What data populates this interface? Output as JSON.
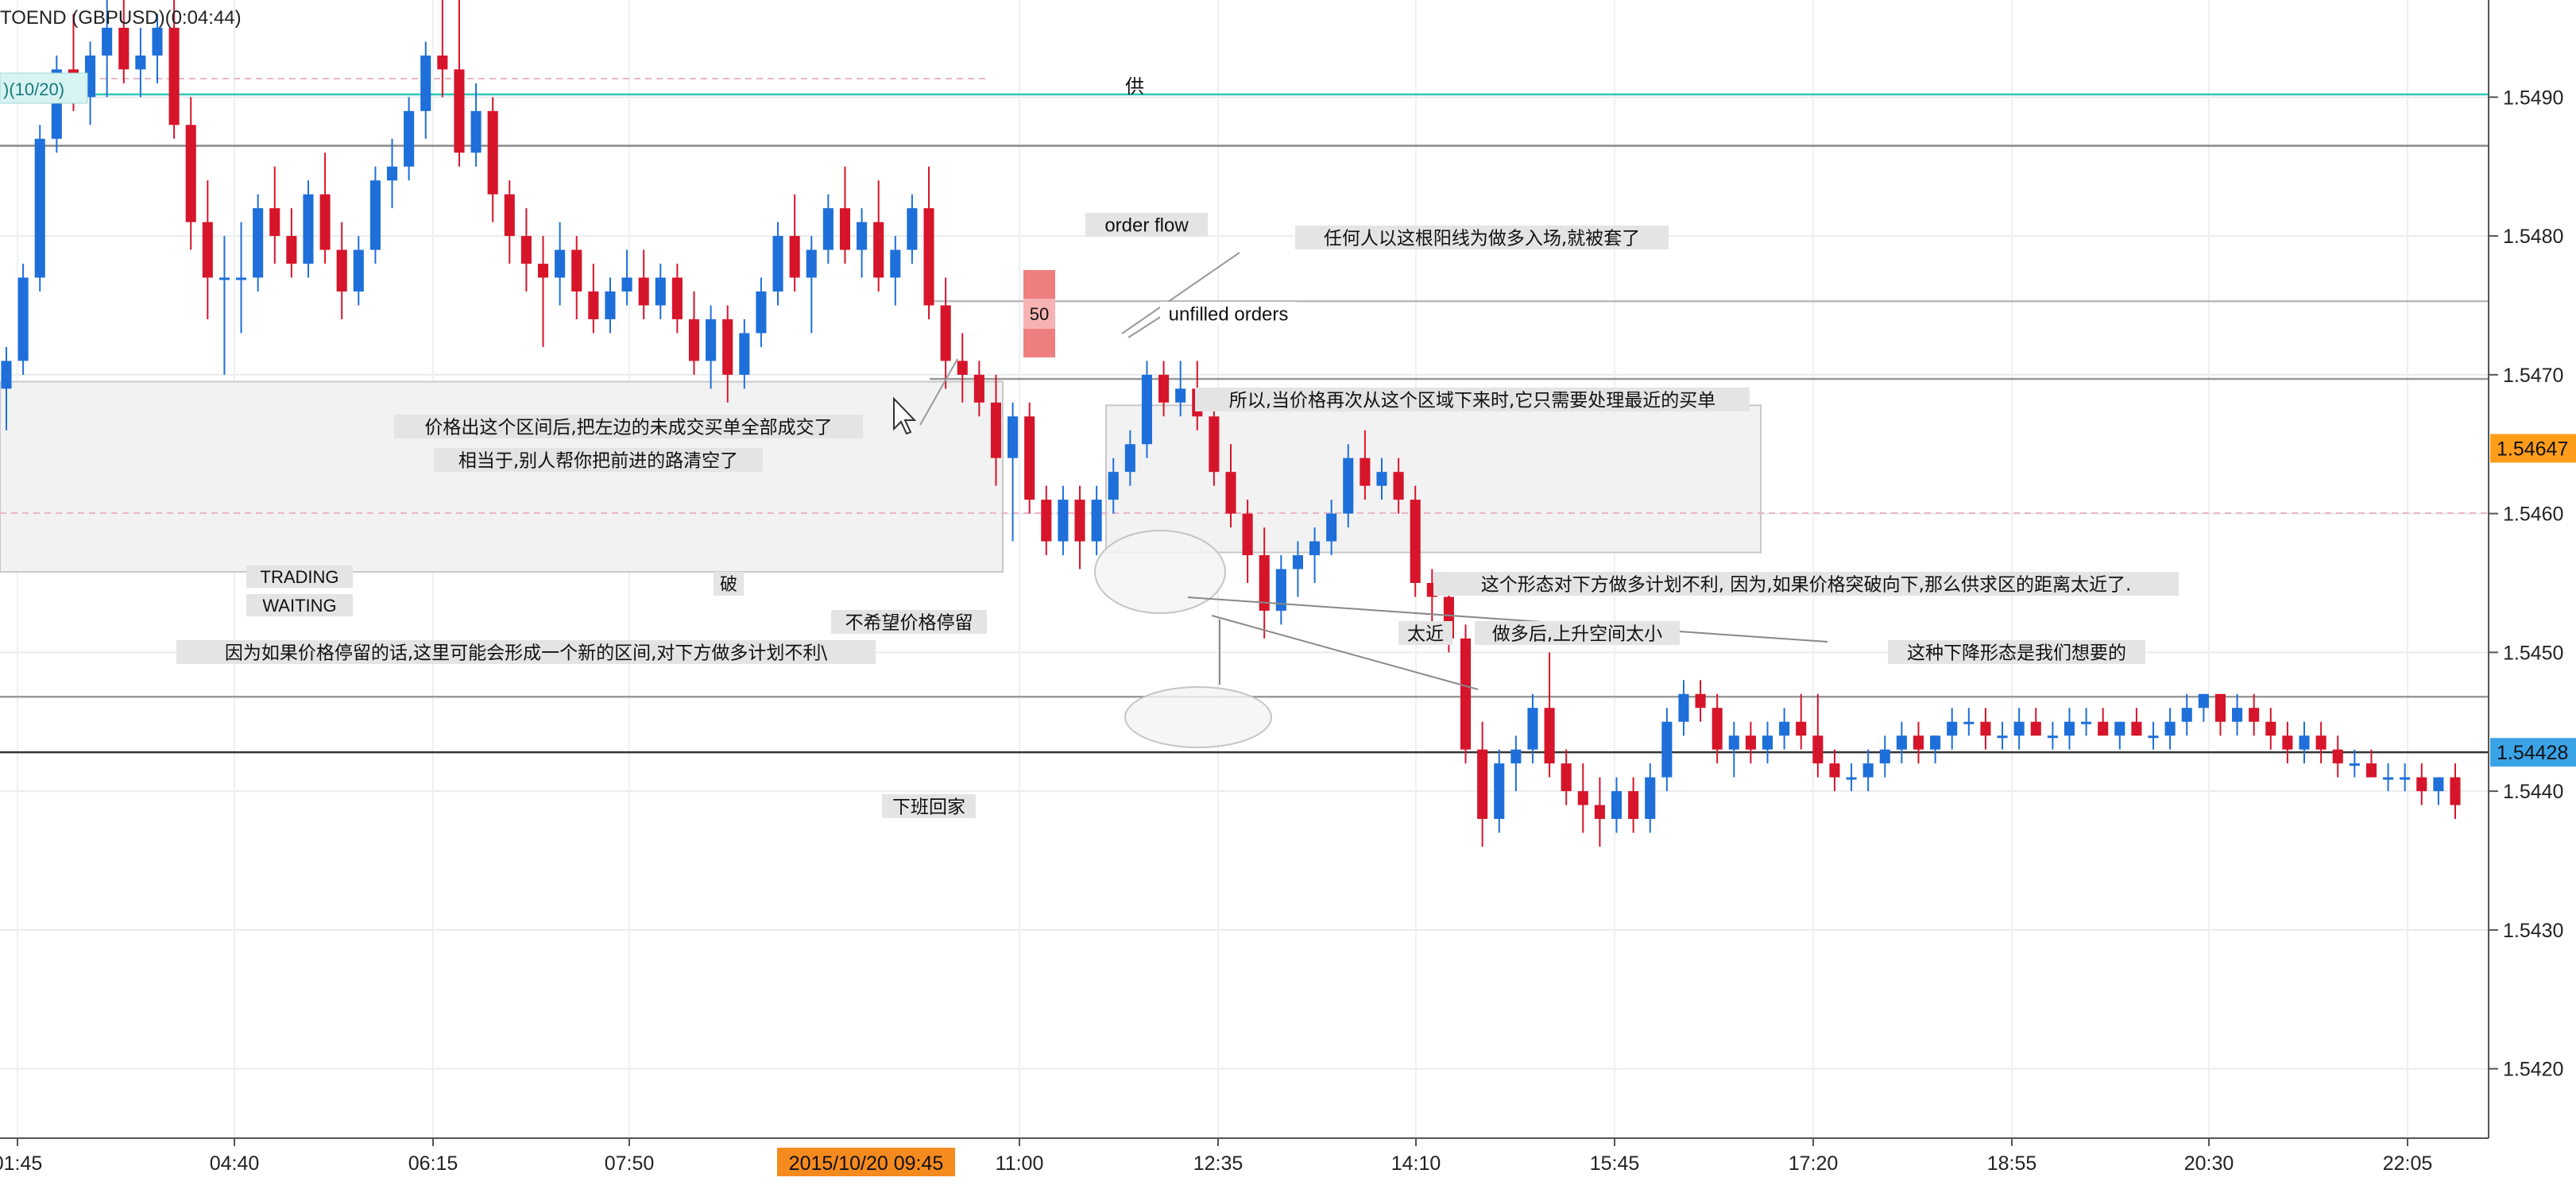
{
  "window": {
    "symbol_title": "TOEND (GBPUSD)(0:04:44)",
    "indicator_label": ")(10/20)"
  },
  "chart_data": {
    "type": "candlestick",
    "ylim": [
      1.5415,
      1.5497
    ],
    "y_ticks": [
      "1.5490",
      "1.5480",
      "1.5470",
      "1.5460",
      "1.5450",
      "1.5440",
      "1.5430",
      "1.5420"
    ],
    "y_tick_values": [
      1.549,
      1.548,
      1.547,
      1.546,
      1.545,
      1.544,
      1.543,
      1.542
    ],
    "x_ticks": [
      "01:45",
      "04:40",
      "06:15",
      "07:50",
      "11:00",
      "12:35",
      "14:10",
      "15:45",
      "17:20",
      "18:55",
      "20:30",
      "22:05"
    ],
    "x_highlight_label": "2015/10/20 09:45",
    "price_markers": [
      {
        "label": "1.54647",
        "value": 1.54647,
        "color": "#ff9d1a"
      },
      {
        "label": "1.54428",
        "value": 1.54428,
        "color": "#3aa3e8"
      }
    ],
    "levels": [
      {
        "value": 1.54902,
        "color": "#2ec8b5",
        "label": "供"
      },
      {
        "value": 1.54865,
        "color": "#888888",
        "label": ""
      },
      {
        "value": 1.54753,
        "color": "#bbbbbb",
        "label": ""
      },
      {
        "value": 1.54697,
        "color": "#999999",
        "label": ""
      },
      {
        "value": 1.54468,
        "color": "#999999",
        "label": ""
      },
      {
        "value": 1.54428,
        "color": "#333333",
        "label": ""
      }
    ],
    "zones": [
      {
        "from": 1.54695,
        "to": 1.54558,
        "color": "#f2f2f2"
      },
      {
        "from": 1.54678,
        "to": 1.54572,
        "color": "#f2f2f2"
      }
    ],
    "candles": [
      {
        "o": 1.5469,
        "h": 1.5472,
        "l": 1.5466,
        "c": 1.5471
      },
      {
        "o": 1.5471,
        "h": 1.5478,
        "l": 1.547,
        "c": 1.5477
      },
      {
        "o": 1.5477,
        "h": 1.5488,
        "l": 1.5476,
        "c": 1.5487
      },
      {
        "o": 1.5487,
        "h": 1.5493,
        "l": 1.5486,
        "c": 1.5492
      },
      {
        "o": 1.5492,
        "h": 1.5496,
        "l": 1.5489,
        "c": 1.549
      },
      {
        "o": 1.549,
        "h": 1.5494,
        "l": 1.5488,
        "c": 1.5493
      },
      {
        "o": 1.5493,
        "h": 1.5497,
        "l": 1.549,
        "c": 1.5495
      },
      {
        "o": 1.5495,
        "h": 1.5497,
        "l": 1.5491,
        "c": 1.5492
      },
      {
        "o": 1.5492,
        "h": 1.5495,
        "l": 1.549,
        "c": 1.5493
      },
      {
        "o": 1.5493,
        "h": 1.5496,
        "l": 1.5491,
        "c": 1.5495
      },
      {
        "o": 1.5495,
        "h": 1.5497,
        "l": 1.5487,
        "c": 1.5488
      },
      {
        "o": 1.5488,
        "h": 1.549,
        "l": 1.5479,
        "c": 1.5481
      },
      {
        "o": 1.5481,
        "h": 1.5484,
        "l": 1.5474,
        "c": 1.5477
      },
      {
        "o": 1.5477,
        "h": 1.548,
        "l": 1.547,
        "c": 1.5477
      },
      {
        "o": 1.5477,
        "h": 1.5481,
        "l": 1.5473,
        "c": 1.5477
      },
      {
        "o": 1.5477,
        "h": 1.5483,
        "l": 1.5476,
        "c": 1.5482
      },
      {
        "o": 1.5482,
        "h": 1.5485,
        "l": 1.5478,
        "c": 1.548
      },
      {
        "o": 1.548,
        "h": 1.5482,
        "l": 1.5477,
        "c": 1.5478
      },
      {
        "o": 1.5478,
        "h": 1.5484,
        "l": 1.5477,
        "c": 1.5483
      },
      {
        "o": 1.5483,
        "h": 1.5486,
        "l": 1.5478,
        "c": 1.5479
      },
      {
        "o": 1.5479,
        "h": 1.5481,
        "l": 1.5474,
        "c": 1.5476
      },
      {
        "o": 1.5476,
        "h": 1.548,
        "l": 1.5475,
        "c": 1.5479
      },
      {
        "o": 1.5479,
        "h": 1.5485,
        "l": 1.5478,
        "c": 1.5484
      },
      {
        "o": 1.5484,
        "h": 1.5487,
        "l": 1.5482,
        "c": 1.5485
      },
      {
        "o": 1.5485,
        "h": 1.549,
        "l": 1.5484,
        "c": 1.5489
      },
      {
        "o": 1.5489,
        "h": 1.5494,
        "l": 1.5487,
        "c": 1.5493
      },
      {
        "o": 1.5493,
        "h": 1.5497,
        "l": 1.549,
        "c": 1.5492
      },
      {
        "o": 1.5492,
        "h": 1.5497,
        "l": 1.5485,
        "c": 1.5486
      },
      {
        "o": 1.5486,
        "h": 1.5491,
        "l": 1.5485,
        "c": 1.5489
      },
      {
        "o": 1.5489,
        "h": 1.549,
        "l": 1.5481,
        "c": 1.5483
      },
      {
        "o": 1.5483,
        "h": 1.5484,
        "l": 1.5478,
        "c": 1.548
      },
      {
        "o": 1.548,
        "h": 1.5482,
        "l": 1.5476,
        "c": 1.5478
      },
      {
        "o": 1.5478,
        "h": 1.548,
        "l": 1.5472,
        "c": 1.5477
      },
      {
        "o": 1.5477,
        "h": 1.5481,
        "l": 1.5475,
        "c": 1.5479
      },
      {
        "o": 1.5479,
        "h": 1.548,
        "l": 1.5474,
        "c": 1.5476
      },
      {
        "o": 1.5476,
        "h": 1.5478,
        "l": 1.5473,
        "c": 1.5474
      },
      {
        "o": 1.5474,
        "h": 1.5477,
        "l": 1.5473,
        "c": 1.5476
      },
      {
        "o": 1.5476,
        "h": 1.5479,
        "l": 1.5475,
        "c": 1.5477
      },
      {
        "o": 1.5477,
        "h": 1.5479,
        "l": 1.5474,
        "c": 1.5475
      },
      {
        "o": 1.5475,
        "h": 1.5478,
        "l": 1.5474,
        "c": 1.5477
      },
      {
        "o": 1.5477,
        "h": 1.5478,
        "l": 1.5473,
        "c": 1.5474
      },
      {
        "o": 1.5474,
        "h": 1.5476,
        "l": 1.547,
        "c": 1.5471
      },
      {
        "o": 1.5471,
        "h": 1.5475,
        "l": 1.5469,
        "c": 1.5474
      },
      {
        "o": 1.5474,
        "h": 1.5475,
        "l": 1.5468,
        "c": 1.547
      },
      {
        "o": 1.547,
        "h": 1.5474,
        "l": 1.5469,
        "c": 1.5473
      },
      {
        "o": 1.5473,
        "h": 1.5477,
        "l": 1.5472,
        "c": 1.5476
      },
      {
        "o": 1.5476,
        "h": 1.5481,
        "l": 1.5475,
        "c": 1.548
      },
      {
        "o": 1.548,
        "h": 1.5483,
        "l": 1.5476,
        "c": 1.5477
      },
      {
        "o": 1.5477,
        "h": 1.548,
        "l": 1.5473,
        "c": 1.5479
      },
      {
        "o": 1.5479,
        "h": 1.5483,
        "l": 1.5478,
        "c": 1.5482
      },
      {
        "o": 1.5482,
        "h": 1.5485,
        "l": 1.5478,
        "c": 1.5479
      },
      {
        "o": 1.5479,
        "h": 1.5482,
        "l": 1.5477,
        "c": 1.5481
      },
      {
        "o": 1.5481,
        "h": 1.5484,
        "l": 1.5476,
        "c": 1.5477
      },
      {
        "o": 1.5477,
        "h": 1.548,
        "l": 1.5475,
        "c": 1.5479
      },
      {
        "o": 1.5479,
        "h": 1.5483,
        "l": 1.5478,
        "c": 1.5482
      },
      {
        "o": 1.5482,
        "h": 1.5485,
        "l": 1.5474,
        "c": 1.5475
      },
      {
        "o": 1.5475,
        "h": 1.5477,
        "l": 1.5469,
        "c": 1.5471
      },
      {
        "o": 1.5471,
        "h": 1.5473,
        "l": 1.5468,
        "c": 1.547
      },
      {
        "o": 1.547,
        "h": 1.5471,
        "l": 1.5467,
        "c": 1.5468
      },
      {
        "o": 1.5468,
        "h": 1.547,
        "l": 1.5462,
        "c": 1.5464
      },
      {
        "o": 1.5464,
        "h": 1.5468,
        "l": 1.5458,
        "c": 1.5467
      },
      {
        "o": 1.5467,
        "h": 1.5468,
        "l": 1.546,
        "c": 1.5461
      },
      {
        "o": 1.5461,
        "h": 1.5462,
        "l": 1.5457,
        "c": 1.5458
      },
      {
        "o": 1.5458,
        "h": 1.5462,
        "l": 1.5457,
        "c": 1.5461
      },
      {
        "o": 1.5461,
        "h": 1.5462,
        "l": 1.5456,
        "c": 1.5458
      },
      {
        "o": 1.5458,
        "h": 1.5462,
        "l": 1.5457,
        "c": 1.5461
      },
      {
        "o": 1.5461,
        "h": 1.5464,
        "l": 1.546,
        "c": 1.5463
      },
      {
        "o": 1.5463,
        "h": 1.5466,
        "l": 1.5462,
        "c": 1.5465
      },
      {
        "o": 1.5465,
        "h": 1.5471,
        "l": 1.5464,
        "c": 1.547
      },
      {
        "o": 1.547,
        "h": 1.5471,
        "l": 1.5467,
        "c": 1.5468
      },
      {
        "o": 1.5468,
        "h": 1.5471,
        "l": 1.5467,
        "c": 1.5469
      },
      {
        "o": 1.5469,
        "h": 1.5471,
        "l": 1.5466,
        "c": 1.5467
      },
      {
        "o": 1.5467,
        "h": 1.5469,
        "l": 1.5462,
        "c": 1.5463
      },
      {
        "o": 1.5463,
        "h": 1.5465,
        "l": 1.5459,
        "c": 1.546
      },
      {
        "o": 1.546,
        "h": 1.5461,
        "l": 1.5455,
        "c": 1.5457
      },
      {
        "o": 1.5457,
        "h": 1.5459,
        "l": 1.5451,
        "c": 1.5453
      },
      {
        "o": 1.5453,
        "h": 1.5457,
        "l": 1.5452,
        "c": 1.5456
      },
      {
        "o": 1.5456,
        "h": 1.5458,
        "l": 1.5454,
        "c": 1.5457
      },
      {
        "o": 1.5457,
        "h": 1.5459,
        "l": 1.5455,
        "c": 1.5458
      },
      {
        "o": 1.5458,
        "h": 1.5461,
        "l": 1.5457,
        "c": 1.546
      },
      {
        "o": 1.546,
        "h": 1.5465,
        "l": 1.5459,
        "c": 1.5464
      },
      {
        "o": 1.5464,
        "h": 1.5466,
        "l": 1.5461,
        "c": 1.5462
      },
      {
        "o": 1.5462,
        "h": 1.5464,
        "l": 1.5461,
        "c": 1.5463
      },
      {
        "o": 1.5463,
        "h": 1.5464,
        "l": 1.546,
        "c": 1.5461
      },
      {
        "o": 1.5461,
        "h": 1.5462,
        "l": 1.5454,
        "c": 1.5455
      },
      {
        "o": 1.5455,
        "h": 1.5456,
        "l": 1.5452,
        "c": 1.5454
      },
      {
        "o": 1.5454,
        "h": 1.5455,
        "l": 1.545,
        "c": 1.5451
      },
      {
        "o": 1.5451,
        "h": 1.5452,
        "l": 1.5442,
        "c": 1.5443
      },
      {
        "o": 1.5443,
        "h": 1.5445,
        "l": 1.5436,
        "c": 1.5438
      },
      {
        "o": 1.5438,
        "h": 1.5443,
        "l": 1.5437,
        "c": 1.5442
      },
      {
        "o": 1.5442,
        "h": 1.5444,
        "l": 1.544,
        "c": 1.5443
      },
      {
        "o": 1.5443,
        "h": 1.5447,
        "l": 1.5442,
        "c": 1.5446
      },
      {
        "o": 1.5446,
        "h": 1.545,
        "l": 1.5441,
        "c": 1.5442
      },
      {
        "o": 1.5442,
        "h": 1.5443,
        "l": 1.5439,
        "c": 1.544
      },
      {
        "o": 1.544,
        "h": 1.5442,
        "l": 1.5437,
        "c": 1.5439
      },
      {
        "o": 1.5439,
        "h": 1.5441,
        "l": 1.5436,
        "c": 1.5438
      },
      {
        "o": 1.5438,
        "h": 1.5441,
        "l": 1.5437,
        "c": 1.544
      },
      {
        "o": 1.544,
        "h": 1.5441,
        "l": 1.5437,
        "c": 1.5438
      },
      {
        "o": 1.5438,
        "h": 1.5442,
        "l": 1.5437,
        "c": 1.5441
      },
      {
        "o": 1.5441,
        "h": 1.5446,
        "l": 1.544,
        "c": 1.5445
      },
      {
        "o": 1.5445,
        "h": 1.5448,
        "l": 1.5444,
        "c": 1.5447
      },
      {
        "o": 1.5447,
        "h": 1.5448,
        "l": 1.5445,
        "c": 1.5446
      },
      {
        "o": 1.5446,
        "h": 1.5447,
        "l": 1.5442,
        "c": 1.5443
      },
      {
        "o": 1.5443,
        "h": 1.5445,
        "l": 1.5441,
        "c": 1.5444
      },
      {
        "o": 1.5444,
        "h": 1.5445,
        "l": 1.5442,
        "c": 1.5443
      },
      {
        "o": 1.5443,
        "h": 1.5445,
        "l": 1.5442,
        "c": 1.5444
      },
      {
        "o": 1.5444,
        "h": 1.5446,
        "l": 1.5443,
        "c": 1.5445
      },
      {
        "o": 1.5445,
        "h": 1.5447,
        "l": 1.5443,
        "c": 1.5444
      },
      {
        "o": 1.5444,
        "h": 1.5447,
        "l": 1.5441,
        "c": 1.5442
      },
      {
        "o": 1.5442,
        "h": 1.5443,
        "l": 1.544,
        "c": 1.5441
      },
      {
        "o": 1.5441,
        "h": 1.5442,
        "l": 1.544,
        "c": 1.5441
      },
      {
        "o": 1.5441,
        "h": 1.5443,
        "l": 1.544,
        "c": 1.5442
      },
      {
        "o": 1.5442,
        "h": 1.5444,
        "l": 1.5441,
        "c": 1.5443
      },
      {
        "o": 1.5443,
        "h": 1.5445,
        "l": 1.5442,
        "c": 1.5444
      },
      {
        "o": 1.5444,
        "h": 1.5445,
        "l": 1.5442,
        "c": 1.5443
      },
      {
        "o": 1.5443,
        "h": 1.5444,
        "l": 1.5442,
        "c": 1.5444
      },
      {
        "o": 1.5444,
        "h": 1.5446,
        "l": 1.5443,
        "c": 1.5445
      },
      {
        "o": 1.5445,
        "h": 1.5446,
        "l": 1.5444,
        "c": 1.5445
      },
      {
        "o": 1.5445,
        "h": 1.5446,
        "l": 1.5443,
        "c": 1.5444
      },
      {
        "o": 1.5444,
        "h": 1.5445,
        "l": 1.5443,
        "c": 1.5444
      },
      {
        "o": 1.5444,
        "h": 1.5446,
        "l": 1.5443,
        "c": 1.5445
      },
      {
        "o": 1.5445,
        "h": 1.5446,
        "l": 1.5444,
        "c": 1.5444
      },
      {
        "o": 1.5444,
        "h": 1.5445,
        "l": 1.5443,
        "c": 1.5444
      },
      {
        "o": 1.5444,
        "h": 1.5446,
        "l": 1.5443,
        "c": 1.5445
      },
      {
        "o": 1.5445,
        "h": 1.5446,
        "l": 1.5444,
        "c": 1.5445
      },
      {
        "o": 1.5445,
        "h": 1.5446,
        "l": 1.5444,
        "c": 1.5444
      },
      {
        "o": 1.5444,
        "h": 1.5445,
        "l": 1.5443,
        "c": 1.5445
      },
      {
        "o": 1.5445,
        "h": 1.5446,
        "l": 1.5444,
        "c": 1.5444
      },
      {
        "o": 1.5444,
        "h": 1.5445,
        "l": 1.5443,
        "c": 1.5444
      },
      {
        "o": 1.5444,
        "h": 1.5446,
        "l": 1.5443,
        "c": 1.5445
      },
      {
        "o": 1.5445,
        "h": 1.5447,
        "l": 1.5444,
        "c": 1.5446
      },
      {
        "o": 1.5446,
        "h": 1.5447,
        "l": 1.5445,
        "c": 1.5447
      },
      {
        "o": 1.5447,
        "h": 1.5447,
        "l": 1.5444,
        "c": 1.5445
      },
      {
        "o": 1.5445,
        "h": 1.5447,
        "l": 1.5444,
        "c": 1.5446
      },
      {
        "o": 1.5446,
        "h": 1.5447,
        "l": 1.5444,
        "c": 1.5445
      },
      {
        "o": 1.5445,
        "h": 1.5446,
        "l": 1.5443,
        "c": 1.5444
      },
      {
        "o": 1.5444,
        "h": 1.5445,
        "l": 1.5442,
        "c": 1.5443
      },
      {
        "o": 1.5443,
        "h": 1.5445,
        "l": 1.5442,
        "c": 1.5444
      },
      {
        "o": 1.5444,
        "h": 1.5445,
        "l": 1.5442,
        "c": 1.5443
      },
      {
        "o": 1.5443,
        "h": 1.5444,
        "l": 1.5441,
        "c": 1.5442
      },
      {
        "o": 1.5442,
        "h": 1.5443,
        "l": 1.5441,
        "c": 1.5442
      },
      {
        "o": 1.5442,
        "h": 1.5443,
        "l": 1.5441,
        "c": 1.5441
      },
      {
        "o": 1.5441,
        "h": 1.5442,
        "l": 1.544,
        "c": 1.5441
      },
      {
        "o": 1.5441,
        "h": 1.5442,
        "l": 1.544,
        "c": 1.5441
      },
      {
        "o": 1.5441,
        "h": 1.5442,
        "l": 1.5439,
        "c": 1.544
      },
      {
        "o": 1.544,
        "h": 1.5441,
        "l": 1.5439,
        "c": 1.5441
      },
      {
        "o": 1.5441,
        "h": 1.5442,
        "l": 1.5438,
        "c": 1.5439
      }
    ],
    "boxes": [
      {
        "label": "order  flow",
        "color": "#e4e4e4"
      },
      {
        "label": "unfilled orders",
        "color": "#ffffff"
      },
      {
        "label": "50",
        "color": "#f7b3b3"
      },
      {
        "label": "任何人以这根阳线为做多入场,就被套了",
        "color": "#e4e4e4"
      },
      {
        "label": "价格出这个区间后,把左边的未成交买单全部成交了",
        "color": "#e4e4e4"
      },
      {
        "label": "相当于,别人帮你把前进的路清空了",
        "color": "#e4e4e4"
      },
      {
        "label": "所以,当价格再次从这个区域下来时,它只需要处理最近的买单",
        "color": "#e4e4e4"
      },
      {
        "label": "TRADING",
        "color": "#e4e4e4"
      },
      {
        "label": "WAITING",
        "color": "#e4e4e4"
      },
      {
        "label": "破",
        "color": "#e4e4e4"
      },
      {
        "label": "不希望价格停留",
        "color": "#e4e4e4"
      },
      {
        "label": "因为如果价格停留的话,这里可能会形成一个新的区间,对下方做多计划不利\\",
        "color": "#e4e4e4"
      },
      {
        "label": "这个形态对下方做多计划不利, 因为,如果价格突破向下,那么供求区的距离太近了.",
        "color": "#e4e4e4"
      },
      {
        "label": "太近",
        "color": "#e4e4e4"
      },
      {
        "label": "做多后,上升空间太小",
        "color": "#e4e4e4"
      },
      {
        "label": "这种下降形态是我们想要的",
        "color": "#e4e4e4"
      },
      {
        "label": "下班回家",
        "color": "#e4e4e4"
      }
    ],
    "colors": {
      "up": "#1e6fd9",
      "down": "#d6152a"
    },
    "grid": true
  }
}
